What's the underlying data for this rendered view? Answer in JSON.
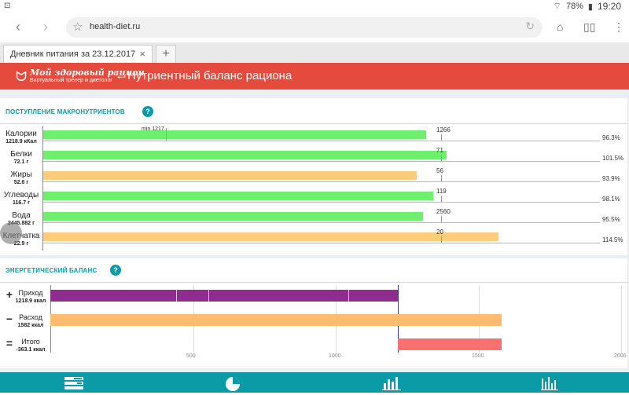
{
  "status": {
    "battery": "78%",
    "time": "19:20"
  },
  "browser": {
    "url": "health-diet.ru",
    "tab_title": "Дневник питания за 23.12.2017",
    "new_tab_label": "+"
  },
  "app": {
    "logo_name": "Мой здоровый рацион",
    "logo_tagline": "Виртуальный тренер и диетолог",
    "page_title": "Нутриентный баланс рациона"
  },
  "macros": {
    "title": "ПОСТУПЛЕНИЕ МАКРОНУТРИЕНТОВ",
    "help": "?",
    "min_label": "min 1217",
    "scale_max": 1.4,
    "rows": [
      {
        "name": "Калории",
        "value": "1218.9 кКал",
        "target": "1266",
        "percent": "96.3%",
        "fraction": 0.963,
        "color": "#6ef06e"
      },
      {
        "name": "Белки",
        "value": "72.1 г",
        "target": "71",
        "percent": "101.5%",
        "fraction": 1.015,
        "color": "#6ef06e"
      },
      {
        "name": "Жиры",
        "value": "52.6 г",
        "target": "56",
        "percent": "93.9%",
        "fraction": 0.939,
        "color": "#ffcd7a"
      },
      {
        "name": "Углеводы",
        "value": "116.7 г",
        "target": "119",
        "percent": "98.1%",
        "fraction": 0.981,
        "color": "#6ef06e"
      },
      {
        "name": "Вода",
        "value": "2445.882 г",
        "target": "2560",
        "percent": "95.5%",
        "fraction": 0.955,
        "color": "#6ef06e"
      },
      {
        "name": "Клетчатка",
        "value": "22.9 г",
        "target": "20",
        "percent": "114.5%",
        "fraction": 1.145,
        "color": "#ffcd7a"
      }
    ]
  },
  "energy": {
    "title": "ЭНЕРГЕТИЧЕСКИЙ БАЛАНС",
    "help": "?",
    "axis_max": 2000,
    "ticks": [
      "500",
      "1000",
      "1500",
      "2000"
    ],
    "tick_values": [
      500,
      1000,
      1500,
      2000
    ],
    "rows": [
      {
        "icon": "+",
        "name": "Приход",
        "value": "1218.9 ккал",
        "amount": 1218.9,
        "color": "#8e2d8e"
      },
      {
        "icon": "−",
        "name": "Расход",
        "value": "1582 ккал",
        "amount": 1582,
        "color": "#ffbb6e"
      },
      {
        "icon": "=",
        "name": "Итого",
        "value": "-363.1 ккал",
        "amount": -363.1,
        "color": "#f97070"
      }
    ]
  }
}
